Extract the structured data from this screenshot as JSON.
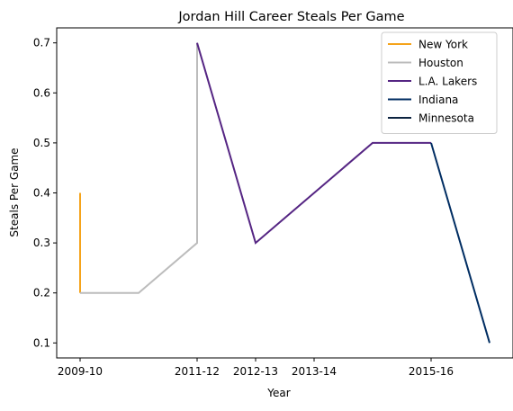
{
  "chart_data": {
    "type": "line",
    "title": "Jordan Hill  Career Steals Per Game",
    "xlabel": "Year",
    "ylabel": "Steals Per Game",
    "x_ticks": [
      "2009-10",
      "2011-12",
      "2012-13",
      "2013-14",
      "2015-16"
    ],
    "x_tick_positions": [
      0,
      2,
      3,
      4,
      6
    ],
    "xlim": [
      -0.4,
      7.4
    ],
    "ylim": [
      0.07,
      0.73
    ],
    "y_ticks": [
      0.1,
      0.2,
      0.3,
      0.4,
      0.5,
      0.6,
      0.7
    ],
    "y_tick_labels": [
      "0.1",
      "0.2",
      "0.3",
      "0.4",
      "0.5",
      "0.6",
      "0.7"
    ],
    "grid": false,
    "legend_position": "top-right",
    "series": [
      {
        "name": "New York",
        "color": "#f5a31a",
        "points": [
          {
            "x": 0,
            "y": 0.4
          },
          {
            "x": 0,
            "y": 0.2
          }
        ]
      },
      {
        "name": "Houston",
        "color": "#bcbcbc",
        "points": [
          {
            "x": 0,
            "y": 0.2
          },
          {
            "x": 1,
            "y": 0.2
          },
          {
            "x": 2,
            "y": 0.3
          },
          {
            "x": 2,
            "y": 0.7
          }
        ]
      },
      {
        "name": "L.A. Lakers",
        "color": "#552583",
        "points": [
          {
            "x": 2,
            "y": 0.7
          },
          {
            "x": 3,
            "y": 0.3
          },
          {
            "x": 5,
            "y": 0.5
          },
          {
            "x": 6,
            "y": 0.5
          }
        ]
      },
      {
        "name": "Indiana",
        "color": "#002d62",
        "points": [
          {
            "x": 6,
            "y": 0.5
          },
          {
            "x": 7,
            "y": 0.1
          }
        ]
      },
      {
        "name": "Minnesota",
        "color": "#0c2340",
        "points": [
          {
            "x": 7,
            "y": 0.1
          }
        ]
      }
    ]
  }
}
